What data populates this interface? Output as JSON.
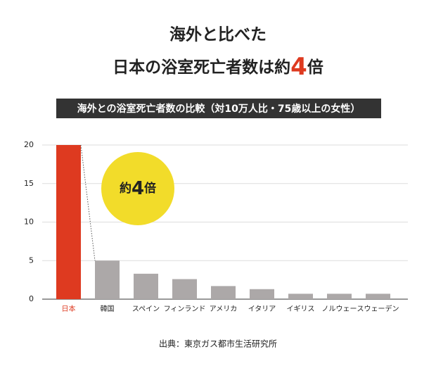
{
  "chart_data": {
    "type": "bar",
    "title_line1": "海外と比べた",
    "title_line2": [
      "日本の浴室死亡者数は約",
      "4",
      "倍"
    ],
    "subtitle": "海外との浴室死亡者数の比較（対10万人比・75歳以上の女性）",
    "annotation": [
      "約",
      "4",
      "倍"
    ],
    "source": "出典：東京ガス都市生活研究所",
    "categories": [
      "日本",
      "韓国",
      "スペイン",
      "フィンランド",
      "アメリカ",
      "イタリア",
      "イギリス",
      "ノルウェー",
      "スウェーデン"
    ],
    "values": [
      20,
      5.0,
      3.3,
      2.6,
      1.7,
      1.3,
      0.7,
      0.7,
      0.7
    ],
    "colors": [
      "#de3a20",
      "#aca8a8",
      "#aca8a8",
      "#aca8a8",
      "#aca8a8",
      "#aca8a8",
      "#aca8a8",
      "#aca8a8",
      "#aca8a8"
    ],
    "ylim": [
      0,
      20
    ],
    "yticks": [
      0,
      5,
      10,
      15,
      20
    ],
    "grid": true
  }
}
